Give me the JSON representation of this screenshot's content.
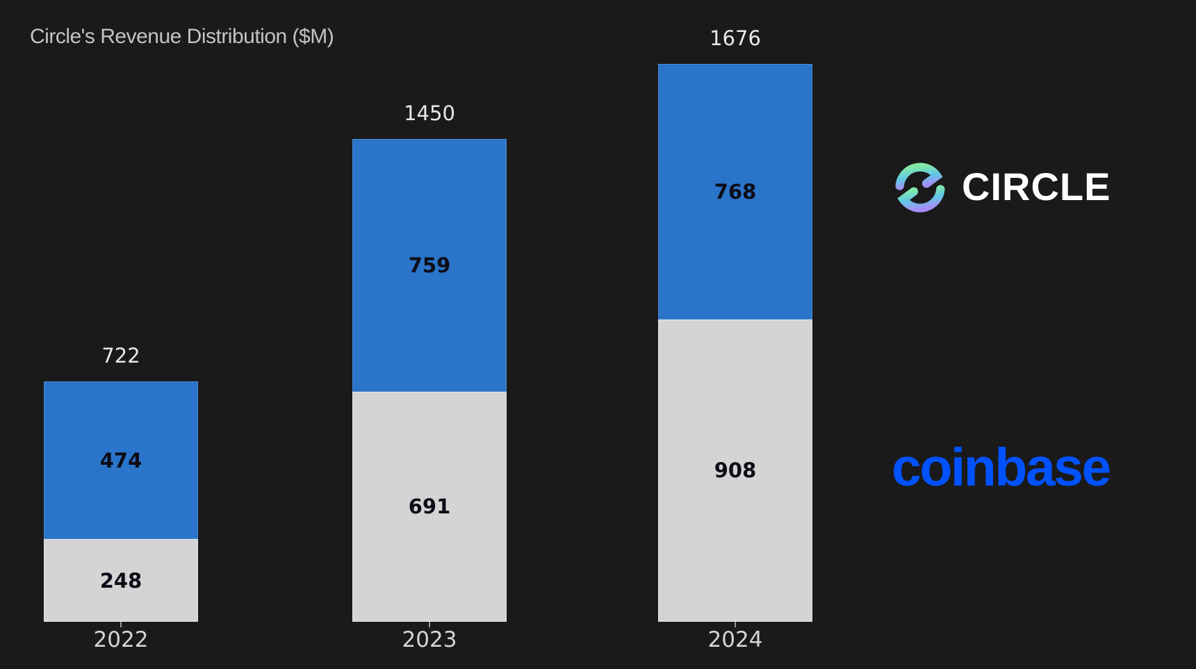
{
  "background": "#1a1a1a",
  "chart_data": {
    "type": "bar",
    "stacked": true,
    "title": "Circle's Revenue Distribution ($M)",
    "title_color": "#c4c4c4",
    "categories": [
      "2022",
      "2023",
      "2024"
    ],
    "series": [
      {
        "name": "coinbase",
        "stack_position": "bottom",
        "color": "#d4d4d4",
        "values": [
          248,
          691,
          908
        ]
      },
      {
        "name": "circle",
        "stack_position": "top",
        "color": "#2a74c9",
        "values": [
          474,
          759,
          768
        ]
      }
    ],
    "totals": [
      722,
      1450,
      1676
    ],
    "value_label_color": "#0d0d17",
    "total_label_color": "#e8e8e8",
    "tick_label_color": "#d6d6d6",
    "ylim": [
      0,
      1676
    ],
    "grid": false,
    "legend": "none",
    "background": "#1a1a1a"
  },
  "logos": {
    "circle": {
      "wordmark": "CIRCLE",
      "text_color": "#ffffff",
      "icon_gradient_top": "#83eaa6",
      "icon_gradient_mid": "#5fc8e6",
      "icon_gradient_bottom": "#a78df6"
    },
    "coinbase": {
      "wordmark": "coinbase",
      "color": "#0052ff"
    }
  }
}
